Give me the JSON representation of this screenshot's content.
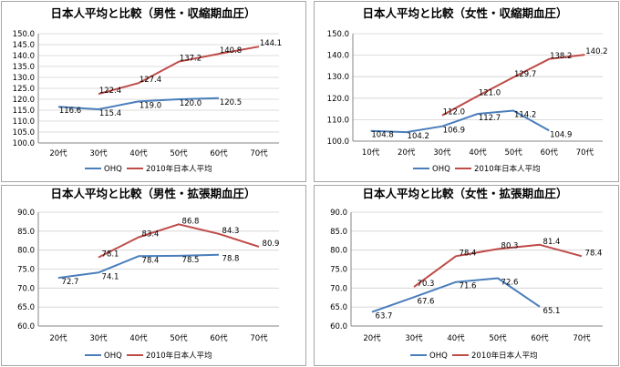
{
  "chart_data": [
    {
      "type": "line",
      "title": "日本人平均と比較（男性・収縮期血圧）",
      "categories": [
        "20代",
        "30代",
        "40代",
        "50代",
        "60代",
        "70代"
      ],
      "yticks": [
        "100.0",
        "105.0",
        "110.0",
        "115.0",
        "120.0",
        "125.0",
        "130.0",
        "135.0",
        "140.0",
        "145.0",
        "150.0"
      ],
      "ylim": [
        100,
        150
      ],
      "grid": true,
      "legend": "bottom",
      "series": [
        {
          "name": "OHQ",
          "color": "#4a7ebb",
          "values": [
            116.6,
            115.4,
            119.0,
            120.0,
            120.5,
            null
          ],
          "labels": [
            "116.6",
            "115.4",
            "119.0",
            "120.0",
            "120.5",
            ""
          ]
        },
        {
          "name": "2010年日本人平均",
          "color": "#be4b48",
          "values": [
            null,
            122.4,
            127.4,
            137.2,
            140.8,
            144.1
          ],
          "labels": [
            "",
            "122.4",
            "127.4",
            "137.2",
            "140.8",
            "144.1"
          ]
        }
      ]
    },
    {
      "type": "line",
      "title": "日本人平均と比較（女性・収縮期血圧）",
      "categories": [
        "10代",
        "20代",
        "30代",
        "40代",
        "50代",
        "60代",
        "70代"
      ],
      "yticks": [
        "100.0",
        "110.0",
        "120.0",
        "130.0",
        "140.0",
        "150.0"
      ],
      "ylim": [
        100,
        150
      ],
      "grid": true,
      "legend": "bottom",
      "series": [
        {
          "name": "OHQ",
          "color": "#4a7ebb",
          "values": [
            104.8,
            104.2,
            106.9,
            112.7,
            114.2,
            104.9,
            null
          ],
          "labels": [
            "104.8",
            "104.2",
            "106.9",
            "112.7",
            "114.2",
            "104.9",
            ""
          ]
        },
        {
          "name": "2010年日本人平均",
          "color": "#be4b48",
          "values": [
            null,
            null,
            112.0,
            121.0,
            129.7,
            138.2,
            140.2
          ],
          "labels": [
            "",
            "",
            "112.0",
            "121.0",
            "129.7",
            "138.2",
            "140.2"
          ]
        }
      ]
    },
    {
      "type": "line",
      "title": "日本人平均と比較（男性・拡張期血圧）",
      "categories": [
        "20代",
        "30代",
        "40代",
        "50代",
        "60代",
        "70代"
      ],
      "yticks": [
        "60.0",
        "65.0",
        "70.0",
        "75.0",
        "80.0",
        "85.0",
        "90.0"
      ],
      "ylim": [
        60,
        90
      ],
      "grid": true,
      "legend": "bottom",
      "series": [
        {
          "name": "OHQ",
          "color": "#4a7ebb",
          "values": [
            72.7,
            74.1,
            78.4,
            78.5,
            78.8,
            null
          ],
          "labels": [
            "72.7",
            "74.1",
            "78.4",
            "78.5",
            "78.8",
            ""
          ]
        },
        {
          "name": "2010年日本人平均",
          "color": "#be4b48",
          "values": [
            null,
            78.1,
            83.4,
            86.8,
            84.3,
            80.9
          ],
          "labels": [
            "",
            "78.1",
            "83.4",
            "86.8",
            "84.3",
            "80.9"
          ]
        }
      ]
    },
    {
      "type": "line",
      "title": "日本人平均と比較（女性・拡張期血圧）",
      "categories": [
        "20代",
        "30代",
        "40代",
        "50代",
        "60代",
        "70代"
      ],
      "yticks": [
        "60.0",
        "65.0",
        "70.0",
        "75.0",
        "80.0",
        "85.0",
        "90.0"
      ],
      "ylim": [
        60,
        90
      ],
      "grid": true,
      "legend": "bottom",
      "series": [
        {
          "name": "OHQ",
          "color": "#4a7ebb",
          "values": [
            63.7,
            67.6,
            71.6,
            72.6,
            65.1,
            null
          ],
          "labels": [
            "63.7",
            "67.6",
            "71.6",
            "72.6",
            "65.1",
            ""
          ]
        },
        {
          "name": "2010年日本人平均",
          "color": "#be4b48",
          "values": [
            null,
            70.3,
            78.4,
            80.3,
            81.4,
            78.4
          ],
          "labels": [
            "",
            "70.3",
            "78.4",
            "80.3",
            "81.4",
            "78.4"
          ]
        }
      ]
    }
  ]
}
